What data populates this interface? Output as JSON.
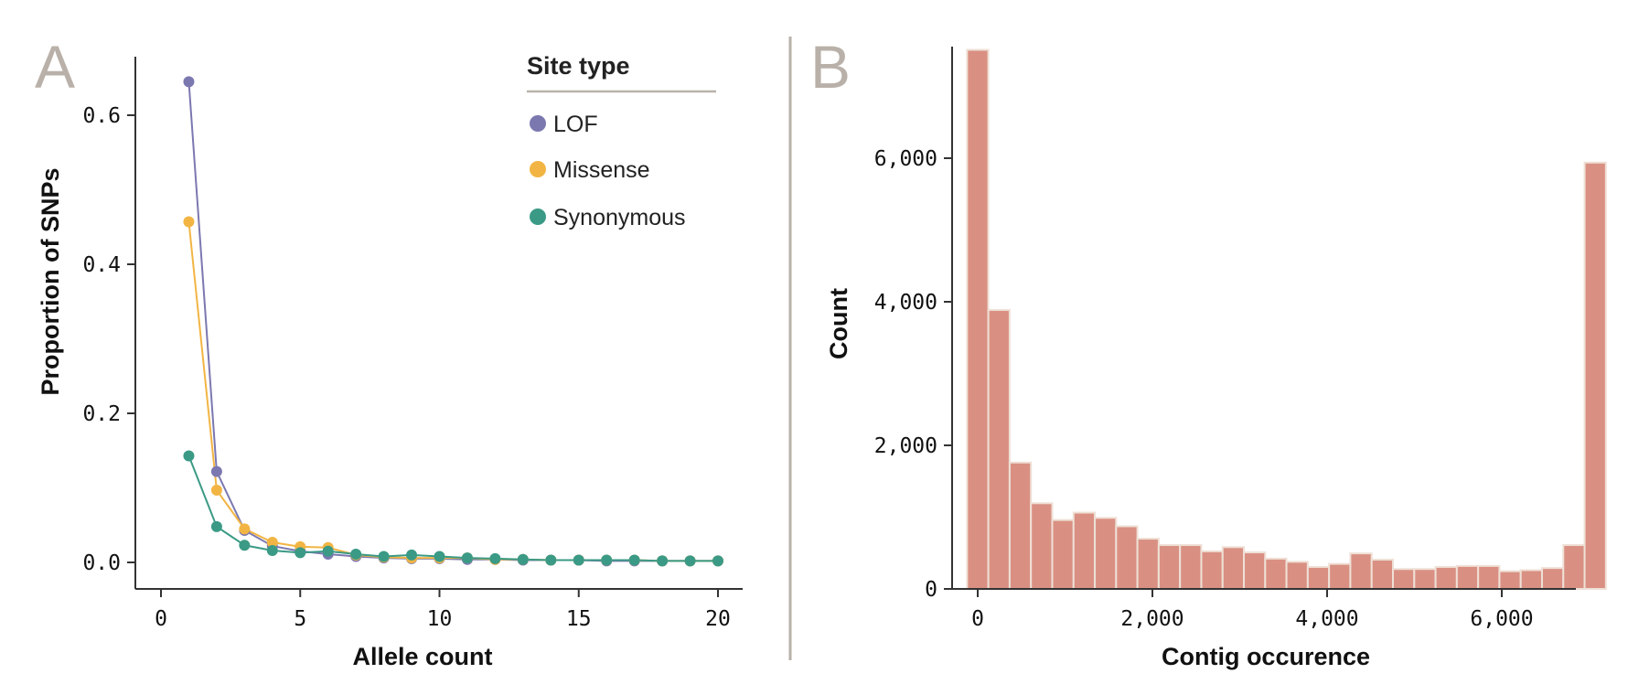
{
  "chart_data": [
    {
      "panel_label": "A",
      "type": "line",
      "xlabel": "Allele count",
      "ylabel": "Proportion of SNPs",
      "xlim": [
        -1.7,
        21.5
      ],
      "ylim": [
        -0.017,
        0.675
      ],
      "xticks": [
        0,
        5,
        10,
        15,
        20
      ],
      "xtick_labels": [
        "0",
        "5",
        "10",
        "15",
        "20"
      ],
      "yticks": [
        0.0,
        0.2,
        0.4,
        0.6
      ],
      "ytick_labels": [
        "0.0",
        "0.2",
        "0.4",
        "0.6"
      ],
      "grid": false,
      "legend": {
        "title": "Site type",
        "placement": "top-right"
      },
      "x": [
        1,
        2,
        3,
        4,
        5,
        6,
        7,
        8,
        9,
        10,
        11,
        12,
        13,
        14,
        15,
        16,
        17,
        18,
        19,
        20
      ],
      "series": [
        {
          "name": "LOF",
          "color": "#7b78b0",
          "values": [
            0.645,
            0.122,
            0.043,
            0.022,
            0.015,
            0.011,
            0.008,
            0.006,
            0.005,
            0.005,
            0.004,
            0.004,
            0.003,
            0.003,
            0.003,
            0.002,
            0.002,
            0.002,
            0.002,
            0.002
          ]
        },
        {
          "name": "Missense",
          "color": "#f2b544",
          "values": [
            0.457,
            0.097,
            0.045,
            0.027,
            0.021,
            0.02,
            0.01,
            0.007,
            0.006,
            0.006,
            0.006,
            0.004,
            0.004,
            0.003,
            0.003,
            0.003,
            0.003,
            0.002,
            0.002,
            0.002
          ]
        },
        {
          "name": "Synonymous",
          "color": "#3a9a85",
          "values": [
            0.143,
            0.048,
            0.023,
            0.016,
            0.013,
            0.015,
            0.011,
            0.008,
            0.01,
            0.008,
            0.006,
            0.005,
            0.004,
            0.003,
            0.003,
            0.003,
            0.003,
            0.002,
            0.002,
            0.002
          ]
        }
      ]
    },
    {
      "panel_label": "B",
      "type": "bar",
      "subtype": "histogram",
      "xlabel": "Contig occurence",
      "ylabel": "Count",
      "xlim": [
        -200,
        7530
      ],
      "ylim": [
        0,
        7550
      ],
      "xticks": [
        0,
        2000,
        4000,
        6000
      ],
      "xtick_labels": [
        "0",
        "2,000",
        "4,000",
        "6,000"
      ],
      "yticks": [
        0,
        2000,
        4000,
        6000
      ],
      "ytick_labels": [
        "0",
        "2,000",
        "4,000",
        "6,000"
      ],
      "grid": false,
      "color": "#d99083",
      "edge_color": "#efe0d6",
      "bin_start": -122,
      "bin_width": 243.8,
      "values": [
        7510,
        3886,
        1761,
        1194,
        960,
        1063,
        990,
        873,
        700,
        611,
        611,
        524,
        582,
        509,
        422,
        378,
        306,
        349,
        495,
        408,
        277,
        277,
        306,
        320,
        320,
        247,
        262,
        291,
        611,
        5939
      ]
    }
  ],
  "colors": {
    "panel_label": "#b9b1a9",
    "divider": "#b9b1a9",
    "axis": "#333333"
  }
}
